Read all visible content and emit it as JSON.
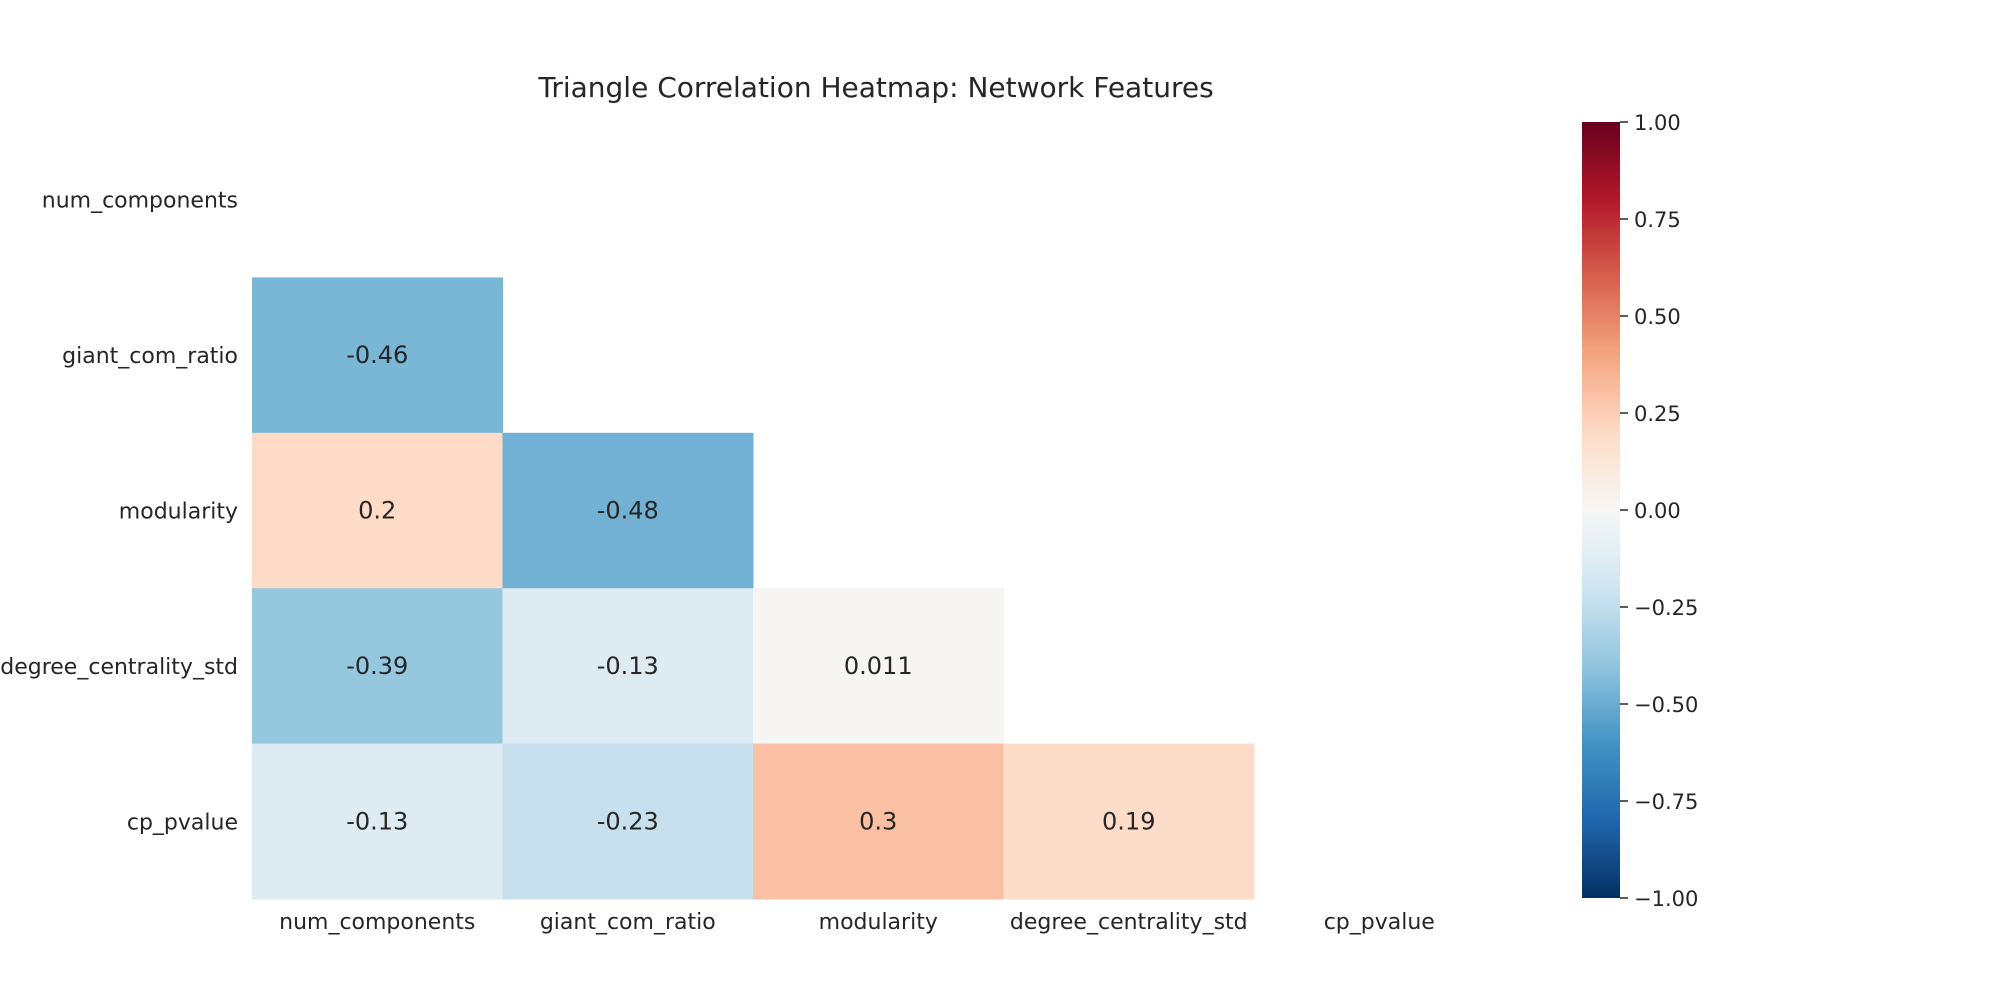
{
  "chart_data": {
    "type": "heatmap",
    "title": "Triangle Correlation Heatmap: Network Features",
    "x_tick_labels": [
      "num_components",
      "giant_com_ratio",
      "modularity",
      "degree_centrality_std",
      "cp_pvalue"
    ],
    "y_tick_labels": [
      "num_components",
      "giant_com_ratio",
      "modularity",
      "degree_centrality_std",
      "cp_pvalue"
    ],
    "mask": "upper triangle including diagonal",
    "cells": [
      {
        "row": 1,
        "col": 0,
        "value": -0.46,
        "label": "-0.46"
      },
      {
        "row": 2,
        "col": 0,
        "value": 0.2,
        "label": "0.2"
      },
      {
        "row": 2,
        "col": 1,
        "value": -0.48,
        "label": "-0.48"
      },
      {
        "row": 3,
        "col": 0,
        "value": -0.39,
        "label": "-0.39"
      },
      {
        "row": 3,
        "col": 1,
        "value": -0.13,
        "label": "-0.13"
      },
      {
        "row": 3,
        "col": 2,
        "value": 0.011,
        "label": "0.011"
      },
      {
        "row": 4,
        "col": 0,
        "value": -0.13,
        "label": "-0.13"
      },
      {
        "row": 4,
        "col": 1,
        "value": -0.23,
        "label": "-0.23"
      },
      {
        "row": 4,
        "col": 2,
        "value": 0.3,
        "label": "0.3"
      },
      {
        "row": 4,
        "col": 3,
        "value": 0.19,
        "label": "0.19"
      }
    ],
    "colormap": "RdBu_r",
    "vmin": -1.0,
    "vmax": 1.0,
    "colorbar": {
      "ticks": [
        1.0,
        0.75,
        0.5,
        0.25,
        0.0,
        -0.25,
        -0.5,
        -0.75,
        -1.0
      ],
      "tick_labels": [
        "1.00",
        "0.75",
        "0.50",
        "0.25",
        "0.00",
        "−0.25",
        "−0.50",
        "−0.75",
        "−1.00"
      ]
    },
    "grid": false,
    "legend": "colorbar-right"
  }
}
